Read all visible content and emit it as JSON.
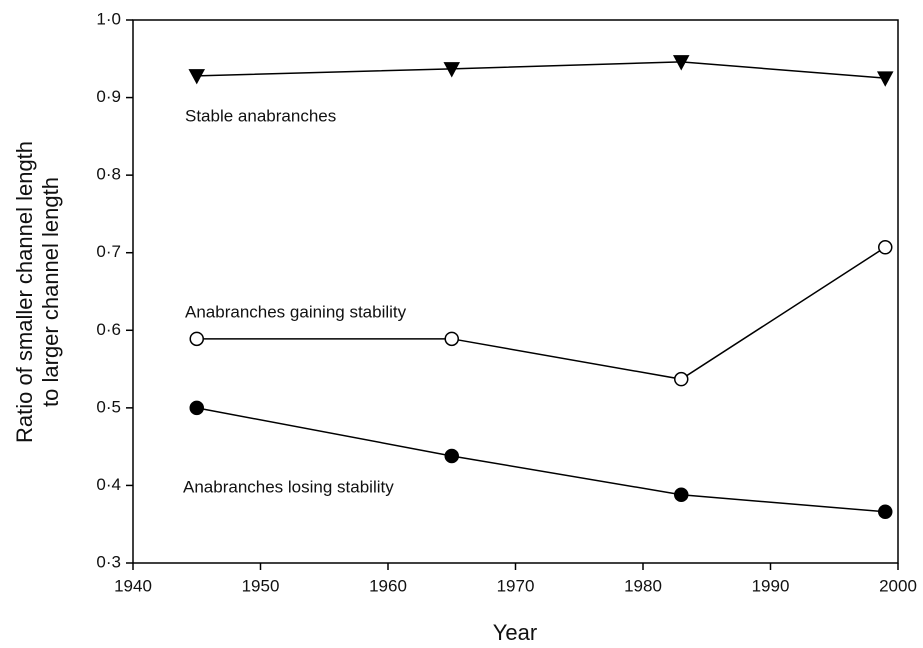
{
  "chart_data": {
    "type": "line",
    "xlabel": "Year",
    "ylabel": [
      "Ratio of smaller channel length",
      "to larger channel length"
    ],
    "x": [
      1945,
      1965,
      1983,
      1999
    ],
    "series": [
      {
        "name": "Stable anabranches",
        "color": "#000000",
        "marker": "triangle-down",
        "values": [
          0.928,
          0.937,
          0.946,
          0.925
        ]
      },
      {
        "name": "Anabranches gaining stability",
        "color": "#000000",
        "marker": "circle-open",
        "values": [
          0.589,
          0.589,
          0.537,
          0.707
        ]
      },
      {
        "name": "Anabranches losing stability",
        "color": "#000000",
        "marker": "circle-filled",
        "values": [
          0.5,
          0.438,
          0.388,
          0.366
        ]
      }
    ],
    "xlim": [
      1940,
      2000
    ],
    "xticks": [
      1940,
      1950,
      1960,
      1970,
      1980,
      1990,
      2000
    ],
    "ylim": [
      0.3,
      1.0
    ],
    "yticks": [
      {
        "value": 0.3,
        "label": "0·3"
      },
      {
        "value": 0.4,
        "label": "0·4"
      },
      {
        "value": 0.5,
        "label": "0·5"
      },
      {
        "value": 0.6,
        "label": "0·6"
      },
      {
        "value": 0.7,
        "label": "0·7"
      },
      {
        "value": 0.8,
        "label": "0·8"
      },
      {
        "value": 0.9,
        "label": "0·9"
      },
      {
        "value": 1.0,
        "label": "1·0"
      }
    ],
    "grid": false
  }
}
